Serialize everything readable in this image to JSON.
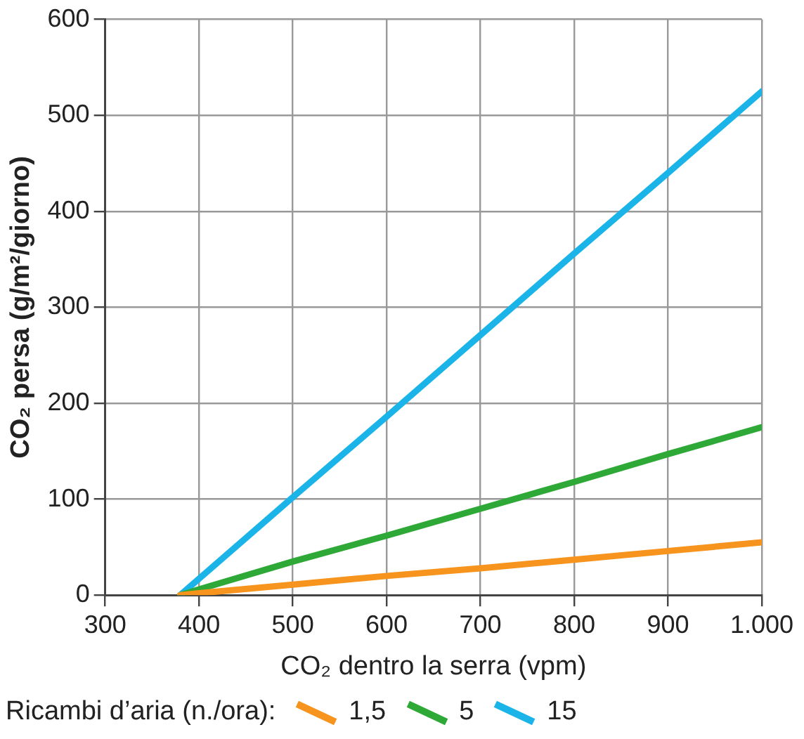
{
  "chart_data": {
    "type": "line",
    "xlabel": "CO₂ dentro la serra (vpm)",
    "ylabel": "CO₂ persa (g/m²/giorno)",
    "legend_title": "Ricambi d’aria (n./ora):",
    "legend": "bottom",
    "grid": true,
    "marker": "none",
    "line_style": "solid",
    "xlim": [
      300,
      1000
    ],
    "xticks": [
      300,
      400,
      500,
      600,
      700,
      800,
      900,
      {
        "value": 1000,
        "label": "1.000"
      }
    ],
    "ylim": [
      0,
      600
    ],
    "yticks": [
      0,
      100,
      200,
      300,
      400,
      500,
      600
    ],
    "x": [
      380,
      400,
      500,
      600,
      700,
      800,
      900,
      1000
    ],
    "series": [
      {
        "name": "1,5",
        "color": "#f7941d",
        "values": [
          0,
          2,
          11,
          20,
          28,
          37,
          46,
          55
        ]
      },
      {
        "name": "5",
        "color": "#2ea836",
        "values": [
          0,
          6,
          35,
          62,
          90,
          118,
          147,
          175
        ]
      },
      {
        "name": "15",
        "color": "#1ab4e8",
        "values": [
          0,
          17,
          102,
          186,
          271,
          356,
          440,
          525
        ]
      }
    ]
  }
}
